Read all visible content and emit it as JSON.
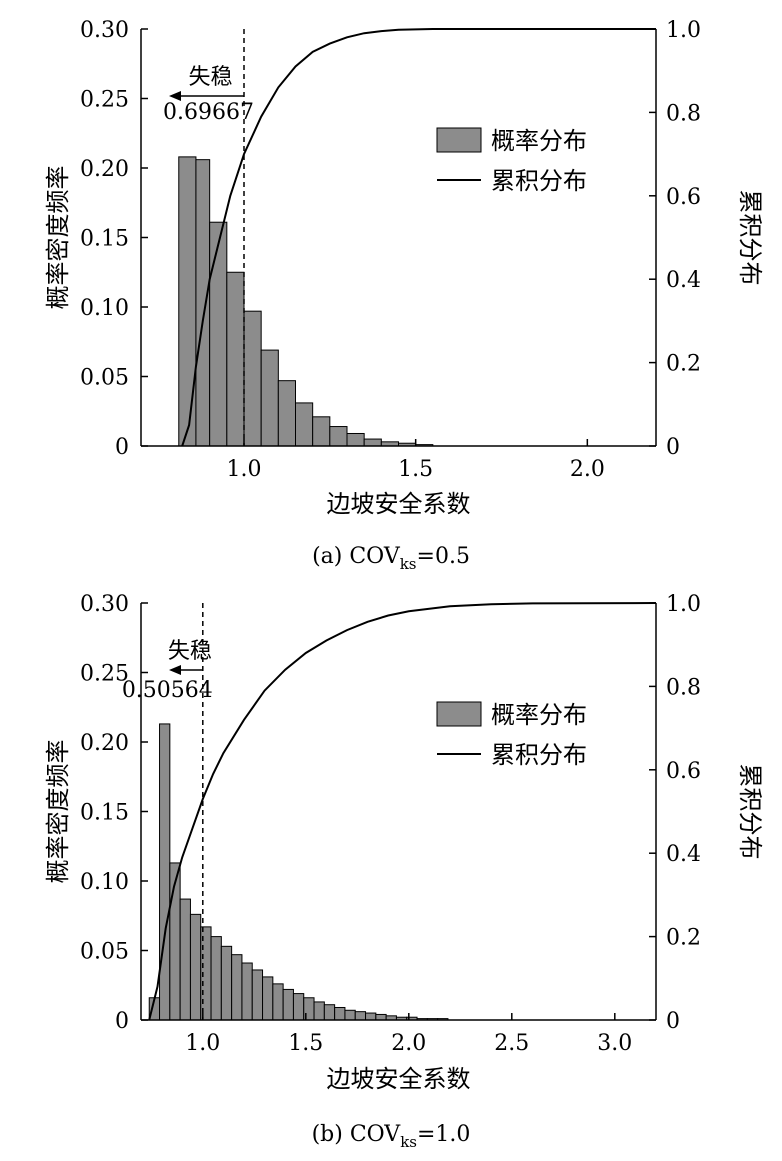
{
  "chart_data": [
    {
      "type": "bar",
      "panel_caption": {
        "prefix": "(a)",
        "main": "COV",
        "sub": "ks",
        "suffix": "=0.5"
      },
      "xlabel": "边坡安全系数",
      "ylabel": "概率密度频率",
      "y2label": "累积分布",
      "xlim": [
        0.7,
        2.2
      ],
      "xticks": [
        1.0,
        1.5,
        2.0
      ],
      "xtick_labels": [
        "1.0",
        "1.5",
        "2.0"
      ],
      "ylim": [
        0,
        0.3
      ],
      "yticks": [
        0,
        0.05,
        0.1,
        0.15,
        0.2,
        0.25,
        0.3
      ],
      "ytick_labels": [
        "0",
        "0.05",
        "0.10",
        "0.15",
        "0.20",
        "0.25",
        "0.30"
      ],
      "y2lim": [
        0,
        1.0
      ],
      "y2ticks": [
        0,
        0.2,
        0.4,
        0.6,
        0.8,
        1.0
      ],
      "y2tick_labels": [
        "0",
        "0.2",
        "0.4",
        "0.6",
        "0.8",
        "1.0"
      ],
      "bin_edges": [
        0.81,
        0.86,
        0.9,
        0.95,
        1.0,
        1.05,
        1.1,
        1.15,
        1.2,
        1.25,
        1.3,
        1.35,
        1.4,
        1.45,
        1.5,
        1.55
      ],
      "bin_values": [
        0.208,
        0.206,
        0.161,
        0.125,
        0.097,
        0.069,
        0.047,
        0.031,
        0.021,
        0.014,
        0.009,
        0.005,
        0.003,
        0.002,
        0.001
      ],
      "series": [
        {
          "name": "概率分布",
          "kind": "histogram"
        },
        {
          "name": "累积分布",
          "kind": "line",
          "x": [
            0.82,
            0.84,
            0.86,
            0.88,
            0.9,
            0.93,
            0.96,
            1.0,
            1.05,
            1.1,
            1.15,
            1.2,
            1.25,
            1.3,
            1.35,
            1.4,
            1.45,
            1.5,
            1.55,
            1.6,
            1.7,
            1.8,
            2.2
          ],
          "y": [
            0.0,
            0.05,
            0.19,
            0.3,
            0.4,
            0.5,
            0.6,
            0.7,
            0.79,
            0.86,
            0.91,
            0.945,
            0.965,
            0.98,
            0.99,
            0.995,
            0.998,
            0.999,
            1.0,
            1.0,
            1.0,
            1.0,
            1.0
          ]
        }
      ],
      "threshold_x": 1.0,
      "annotation": {
        "label": "失稳",
        "value": "0.69667"
      },
      "legend_position": "upper-right"
    },
    {
      "type": "bar",
      "panel_caption": {
        "prefix": "(b)",
        "main": "COV",
        "sub": "ks",
        "suffix": "=1.0"
      },
      "xlabel": "边坡安全系数",
      "ylabel": "概率密度频率",
      "y2label": "累积分布",
      "xlim": [
        0.7,
        3.2
      ],
      "xticks": [
        1.0,
        1.5,
        2.0,
        2.5,
        3.0
      ],
      "xtick_labels": [
        "1.0",
        "1.5",
        "2.0",
        "2.5",
        "3.0"
      ],
      "ylim": [
        0,
        0.3
      ],
      "yticks": [
        0,
        0.05,
        0.1,
        0.15,
        0.2,
        0.25,
        0.3
      ],
      "ytick_labels": [
        "0",
        "0.05",
        "0.10",
        "0.15",
        "0.20",
        "0.25",
        "0.30"
      ],
      "y2lim": [
        0,
        1.0
      ],
      "y2ticks": [
        0,
        0.2,
        0.4,
        0.6,
        0.8,
        1.0
      ],
      "y2tick_labels": [
        "0",
        "0.2",
        "0.4",
        "0.6",
        "0.8",
        "1.0"
      ],
      "bin_edges": [
        0.74,
        0.79,
        0.84,
        0.89,
        0.94,
        0.99,
        1.04,
        1.09,
        1.14,
        1.19,
        1.24,
        1.29,
        1.34,
        1.39,
        1.44,
        1.49,
        1.54,
        1.59,
        1.64,
        1.69,
        1.74,
        1.79,
        1.84,
        1.89,
        1.94,
        1.99,
        2.04,
        2.09,
        2.14,
        2.19
      ],
      "bin_values": [
        0.016,
        0.213,
        0.113,
        0.087,
        0.076,
        0.067,
        0.06,
        0.053,
        0.047,
        0.041,
        0.036,
        0.031,
        0.026,
        0.022,
        0.019,
        0.016,
        0.013,
        0.011,
        0.009,
        0.007,
        0.006,
        0.005,
        0.004,
        0.003,
        0.002,
        0.002,
        0.001,
        0.001,
        0.001
      ],
      "series": [
        {
          "name": "概率分布",
          "kind": "histogram"
        },
        {
          "name": "累积分布",
          "kind": "line",
          "x": [
            0.74,
            0.78,
            0.82,
            0.86,
            0.9,
            0.95,
            1.0,
            1.05,
            1.1,
            1.2,
            1.3,
            1.4,
            1.5,
            1.6,
            1.7,
            1.8,
            1.9,
            2.0,
            2.2,
            2.4,
            2.6,
            3.2
          ],
          "y": [
            0.0,
            0.08,
            0.22,
            0.32,
            0.39,
            0.46,
            0.53,
            0.59,
            0.64,
            0.72,
            0.79,
            0.84,
            0.88,
            0.91,
            0.935,
            0.955,
            0.97,
            0.98,
            0.992,
            0.997,
            0.999,
            1.0
          ]
        }
      ],
      "threshold_x": 1.0,
      "annotation": {
        "label": "失稳",
        "value": "0.50564"
      },
      "legend_position": "upper-right"
    }
  ],
  "colors": {
    "bar_fill": "#8c8c8c",
    "line": "#000000",
    "axis": "#000000"
  }
}
